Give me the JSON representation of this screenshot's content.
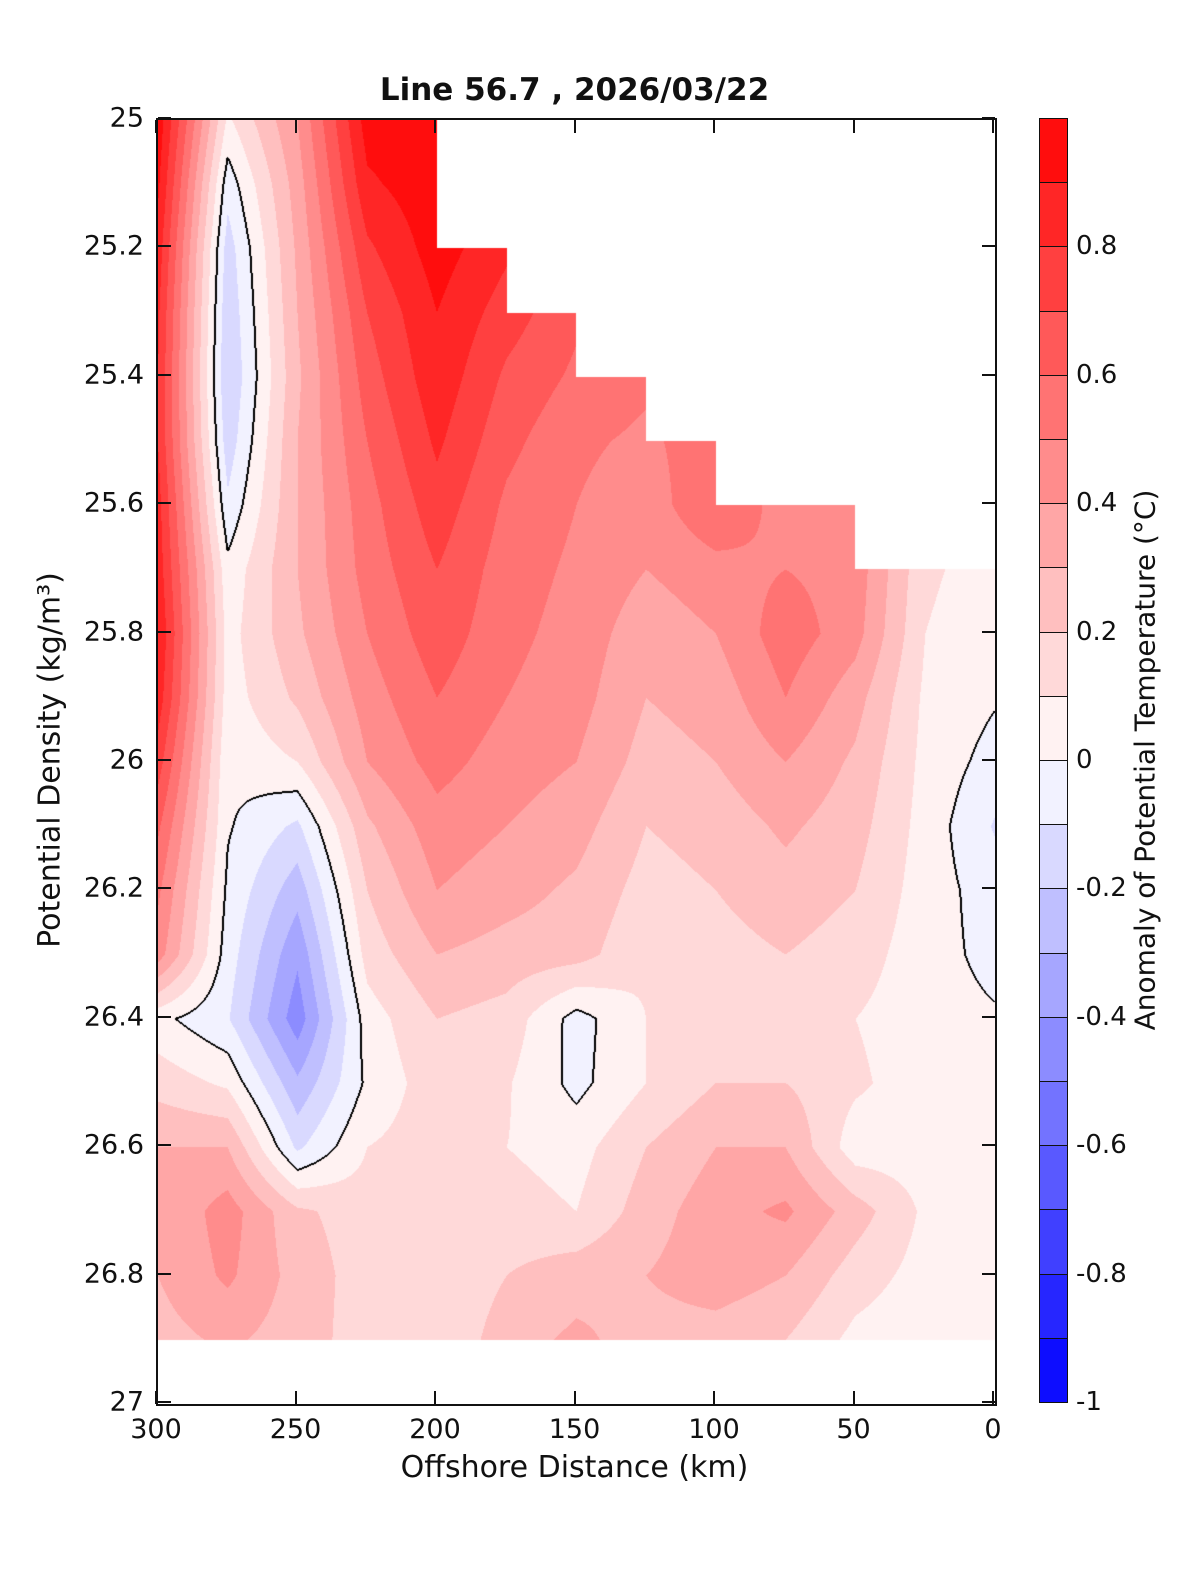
{
  "chart_data": {
    "type": "heatmap",
    "subtype": "filled-contour-section",
    "title": "Line 56.7 , 2026/03/22",
    "xlabel": "Offshore Distance (km)",
    "ylabel": "Potential Density (kg/m³)",
    "x_ticks": [
      {
        "v": 300,
        "label": "300"
      },
      {
        "v": 250,
        "label": "250"
      },
      {
        "v": 200,
        "label": "200"
      },
      {
        "v": 150,
        "label": "150"
      },
      {
        "v": 100,
        "label": "100"
      },
      {
        "v": 50,
        "label": "50"
      },
      {
        "v": 0,
        "label": "0"
      }
    ],
    "y_ticks": [
      {
        "v": 25,
        "label": "25"
      },
      {
        "v": 25.2,
        "label": "25.2"
      },
      {
        "v": 25.4,
        "label": "25.4"
      },
      {
        "v": 25.6,
        "label": "25.6"
      },
      {
        "v": 25.8,
        "label": "25.8"
      },
      {
        "v": 26,
        "label": "26"
      },
      {
        "v": 26.2,
        "label": "26.2"
      },
      {
        "v": 26.4,
        "label": "26.4"
      },
      {
        "v": 26.6,
        "label": "26.6"
      },
      {
        "v": 26.8,
        "label": "26.8"
      },
      {
        "v": 27,
        "label": "27"
      }
    ],
    "x_range": [
      300,
      0
    ],
    "x_direction": "reversed",
    "y_range": [
      25,
      27
    ],
    "y_direction": "increasing-downward",
    "grid": "off",
    "contour_interval": 0.1,
    "zero_contour_line_color": "#000000",
    "no_data_fill": "#ffffff",
    "x_km": [
      300,
      275,
      250,
      225,
      200,
      175,
      150,
      125,
      100,
      75,
      50,
      25,
      0
    ],
    "sigma": [
      25.0,
      25.1,
      25.2,
      25.3,
      25.4,
      25.5,
      25.6,
      25.7,
      25.8,
      25.9,
      26.0,
      26.1,
      26.2,
      26.3,
      26.4,
      26.5,
      26.6,
      26.7,
      26.8,
      26.9,
      27.0
    ],
    "values": [
      [
        0.97,
        0.08,
        0.4,
        0.95,
        0.97,
        null,
        null,
        null,
        null,
        null,
        null,
        null,
        null
      ],
      [
        0.92,
        -0.06,
        0.35,
        0.88,
        0.97,
        null,
        null,
        null,
        null,
        null,
        null,
        null,
        null
      ],
      [
        0.86,
        -0.15,
        0.32,
        0.78,
        0.95,
        0.82,
        null,
        null,
        null,
        null,
        null,
        null,
        null
      ],
      [
        0.82,
        -0.18,
        0.3,
        0.7,
        0.9,
        0.75,
        0.62,
        null,
        null,
        null,
        null,
        null,
        null
      ],
      [
        0.8,
        -0.2,
        0.28,
        0.65,
        0.87,
        0.68,
        0.58,
        0.52,
        null,
        null,
        null,
        null,
        null
      ],
      [
        0.8,
        -0.16,
        0.3,
        0.6,
        0.82,
        0.63,
        0.52,
        0.48,
        0.56,
        null,
        null,
        null,
        null
      ],
      [
        0.84,
        -0.08,
        0.3,
        0.56,
        0.76,
        0.58,
        0.5,
        0.44,
        0.6,
        0.45,
        0.44,
        null,
        null
      ],
      [
        0.86,
        0.03,
        0.3,
        0.54,
        0.7,
        0.55,
        0.48,
        0.4,
        0.46,
        0.5,
        0.46,
        0.12,
        0.05
      ],
      [
        0.9,
        0.06,
        0.28,
        0.5,
        0.66,
        0.53,
        0.46,
        0.34,
        0.4,
        0.56,
        0.44,
        0.1,
        0.03
      ],
      [
        0.86,
        0.05,
        0.22,
        0.45,
        0.6,
        0.5,
        0.44,
        0.3,
        0.34,
        0.5,
        0.34,
        0.08,
        0.01
      ],
      [
        0.75,
        0.02,
        0.1,
        0.4,
        0.54,
        0.45,
        0.4,
        0.26,
        0.3,
        0.4,
        0.28,
        0.07,
        -0.04
      ],
      [
        0.62,
        0.01,
        -0.12,
        0.28,
        0.46,
        0.4,
        0.34,
        0.2,
        0.24,
        0.32,
        0.24,
        0.06,
        -0.11
      ],
      [
        0.52,
        -0.02,
        -0.26,
        0.2,
        0.4,
        0.34,
        0.28,
        0.16,
        0.2,
        0.26,
        0.2,
        0.05,
        -0.05
      ],
      [
        0.45,
        -0.05,
        -0.38,
        0.14,
        0.3,
        0.26,
        0.24,
        0.12,
        0.16,
        0.2,
        0.15,
        0.04,
        -0.03
      ],
      [
        0.03,
        -0.09,
        -0.46,
        0.05,
        0.2,
        0.16,
        -0.04,
        0.1,
        0.15,
        0.16,
        0.1,
        0.04,
        0.01
      ],
      [
        0.16,
        0.08,
        -0.28,
        0.02,
        0.16,
        0.11,
        -0.03,
        0.1,
        0.2,
        0.2,
        0.12,
        0.04,
        0.01
      ],
      [
        0.3,
        0.3,
        -0.12,
        0.1,
        0.15,
        0.1,
        0.06,
        0.2,
        0.3,
        0.3,
        0.04,
        0.05,
        0.01
      ],
      [
        0.3,
        0.45,
        0.22,
        0.15,
        0.15,
        0.14,
        0.1,
        0.25,
        0.36,
        0.42,
        0.25,
        0.08,
        0.02
      ],
      [
        0.3,
        0.42,
        0.26,
        0.15,
        0.1,
        0.2,
        0.26,
        0.3,
        0.36,
        0.3,
        0.15,
        0.06,
        0.01
      ],
      [
        0.26,
        0.32,
        0.25,
        0.15,
        0.1,
        0.26,
        0.32,
        0.26,
        0.25,
        0.2,
        0.07,
        0.03,
        0.01
      ],
      [
        null,
        null,
        null,
        null,
        null,
        null,
        null,
        null,
        null,
        null,
        null,
        null,
        null
      ]
    ]
  },
  "colorbar": {
    "label": "Anomaly of Potential Temperature (°C)",
    "range": [
      -1,
      1
    ],
    "segment_step": 0.1,
    "ticks": [
      {
        "v": 0.8,
        "label": "0.8"
      },
      {
        "v": 0.6,
        "label": "0.6"
      },
      {
        "v": 0.4,
        "label": "0.4"
      },
      {
        "v": 0.2,
        "label": "0.2"
      },
      {
        "v": 0,
        "label": "0"
      },
      {
        "v": -0.2,
        "label": "-0.2"
      },
      {
        "v": -0.4,
        "label": "-0.4"
      },
      {
        "v": -0.6,
        "label": "-0.6"
      },
      {
        "v": -0.8,
        "label": "-0.8"
      },
      {
        "v": -1,
        "label": "-1"
      }
    ],
    "colors": {
      "positive_max": "#ff0000",
      "zero": "#ffffff",
      "negative_max": "#0000ff"
    }
  }
}
